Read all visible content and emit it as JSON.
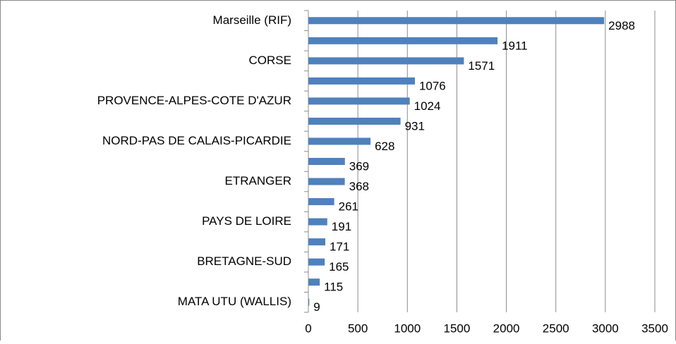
{
  "chart_data": {
    "type": "barh",
    "categories": [
      "Marseille (RIF)",
      null,
      "CORSE",
      null,
      "PROVENCE-ALPES-COTE D'AZUR",
      null,
      "NORD-PAS DE CALAIS-PICARDIE",
      null,
      "ETRANGER",
      null,
      "PAYS DE LOIRE",
      null,
      "BRETAGNE-SUD",
      null,
      "MATA UTU (WALLIS)"
    ],
    "values": [
      2988,
      1911,
      1571,
      1076,
      1024,
      931,
      628,
      369,
      368,
      261,
      191,
      171,
      165,
      115,
      9
    ],
    "color": "#4f81bd",
    "xlim": [
      0,
      3500
    ],
    "xticks": [
      0,
      500,
      1000,
      1500,
      2000,
      2500,
      3000,
      3500
    ],
    "grid": true
  }
}
